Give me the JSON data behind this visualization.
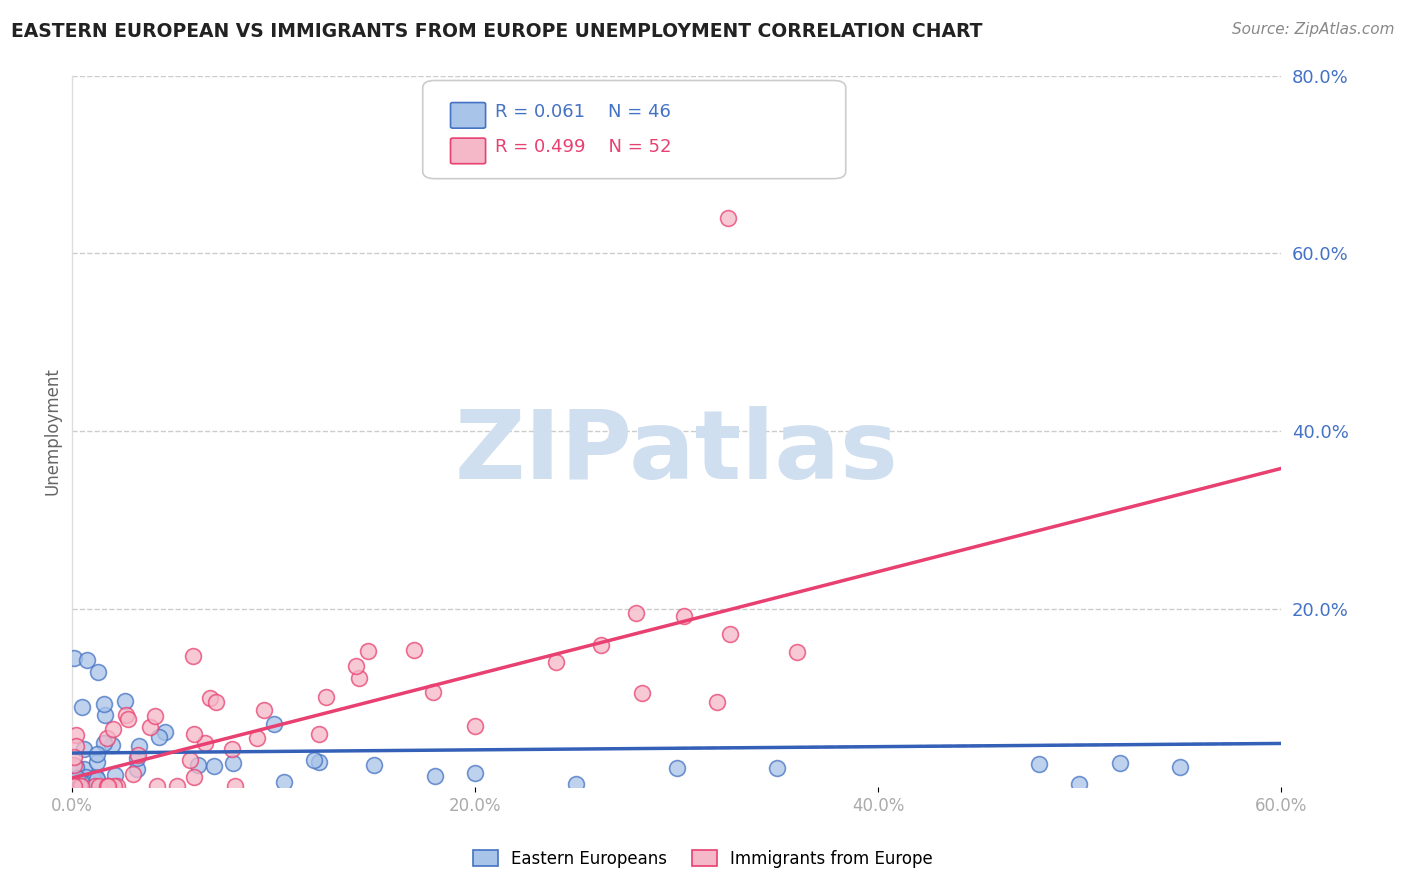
{
  "title": "EASTERN EUROPEAN VS IMMIGRANTS FROM EUROPE UNEMPLOYMENT CORRELATION CHART",
  "source_text": "Source: ZipAtlas.com",
  "ylabel": "Unemployment",
  "xlim": [
    0.0,
    0.6
  ],
  "ylim": [
    0.0,
    0.8
  ],
  "xtick_labels": [
    "0.0%",
    "20.0%",
    "40.0%",
    "60.0%"
  ],
  "xtick_positions": [
    0.0,
    0.2,
    0.4,
    0.6
  ],
  "ytick_labels": [
    "20.0%",
    "40.0%",
    "60.0%",
    "80.0%"
  ],
  "ytick_positions": [
    0.2,
    0.4,
    0.6,
    0.8
  ],
  "legend_r1": "R = 0.061",
  "legend_n1": "N = 46",
  "legend_r2": "R = 0.499",
  "legend_n2": "N = 52",
  "color_blue_fill": "#a8c4e8",
  "color_blue_edge": "#4472c4",
  "color_pink_fill": "#f5b8c8",
  "color_pink_edge": "#e84070",
  "color_blue_line": "#3560b8",
  "color_pink_line": "#e84070",
  "color_title": "#222222",
  "color_source": "#888888",
  "color_r_blue": "#4472c4",
  "color_r_pink": "#e84070",
  "color_ytick": "#4472c4",
  "color_xtick": "#aaaaaa",
  "watermark_color": "#d0dff0",
  "background_color": "#ffffff",
  "trend1_slope": 0.018,
  "trend1_intercept": 0.038,
  "trend2_slope": 0.58,
  "trend2_intercept": 0.01
}
